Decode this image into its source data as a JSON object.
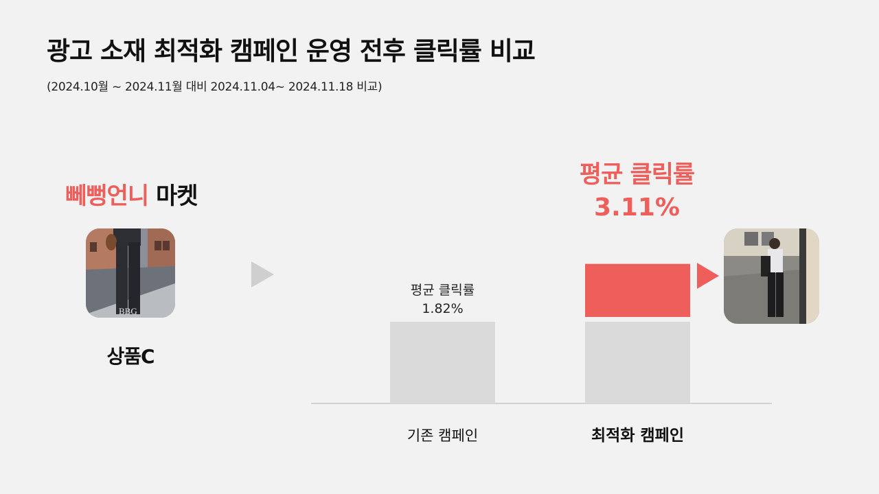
{
  "title": "광고 소재 최적화 캠페인 운영 전후 클릭률 비교",
  "subtitle": "(2024.10월 ~ 2024.11월 대비 2024.11.04~ 2024.11.18 비교)",
  "brand": {
    "accent_text": "뻬뻥언니",
    "rest_text": " 마켓"
  },
  "product_label": "상품C",
  "photos": {
    "left": "product-photo-left",
    "right": "product-photo-right"
  },
  "photo_caption": "BBG",
  "colors": {
    "accent": "#ee5f5b",
    "bar_gray": "#dadada",
    "background": "#f2f2f2",
    "arrow_gray": "#cfcfcf"
  },
  "chart_data": {
    "type": "bar",
    "categories": [
      "기존 캠페인",
      "최적화 캠페인"
    ],
    "values": [
      1.82,
      3.11
    ],
    "unit": "%",
    "data_labels": [
      "평균 클릭률\n1.82%",
      "평균 클릭률\n3.11%"
    ],
    "highlight": {
      "label": "평균 클릭률",
      "value": "3.11%"
    },
    "grid": false,
    "legend": "none"
  }
}
